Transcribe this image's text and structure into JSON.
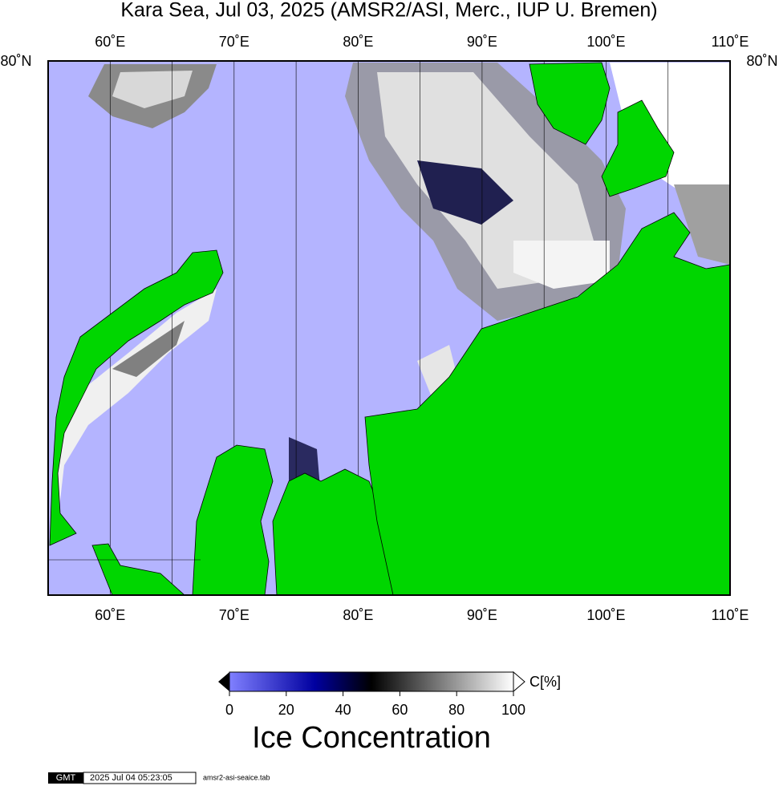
{
  "title": "Kara Sea, Jul 03, 2025 (AMSR2/ASI, Merc., IUP U. Bremen)",
  "map": {
    "xlim": [
      55,
      110
    ],
    "lon_ticks": [
      {
        "value": 60,
        "label": "60˚E"
      },
      {
        "value": 70,
        "label": "70˚E"
      },
      {
        "value": 80,
        "label": "80˚E"
      },
      {
        "value": 90,
        "label": "90˚E"
      },
      {
        "value": 100,
        "label": "100˚E"
      },
      {
        "value": 110,
        "label": "110˚E"
      }
    ],
    "lat_label": "80˚N"
  },
  "colorbar": {
    "range": [
      0,
      100
    ],
    "ticks": [
      0,
      20,
      40,
      60,
      80,
      100
    ],
    "unit": "C[%]",
    "title": "Ice Concentration"
  },
  "footer": {
    "logo": "GMT",
    "timestamp": "2025 Jul 04 05:23:05",
    "file": "amsr2-asi-seaice.tab"
  }
}
